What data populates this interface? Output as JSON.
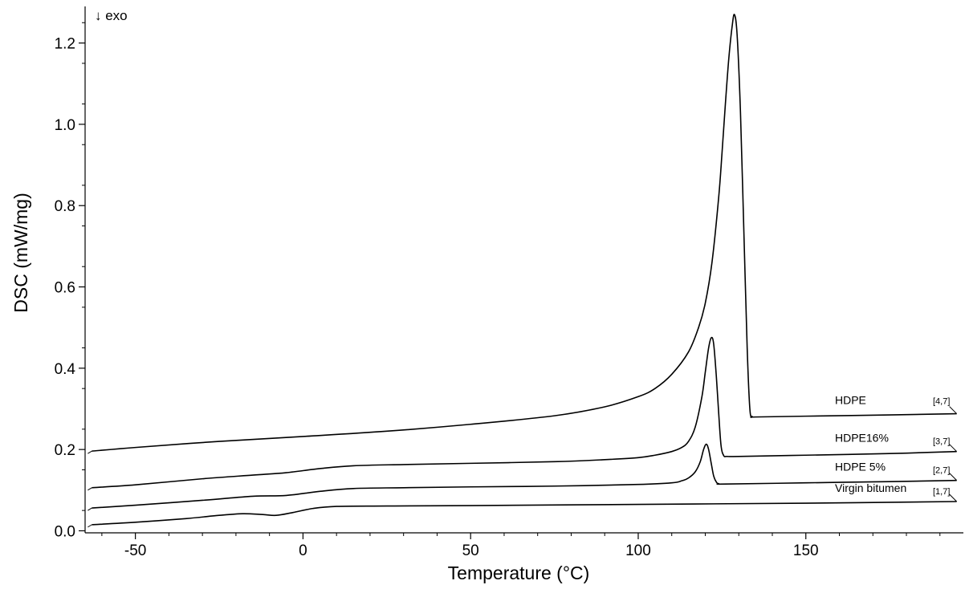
{
  "chart_data": {
    "type": "line",
    "xlabel": "Temperature (°C)",
    "ylabel": "DSC  (mW/mg)",
    "annotation": "↓ exo",
    "xlim": [
      -65,
      197
    ],
    "ylim": [
      -0.005,
      1.29
    ],
    "xticks": [
      -50,
      0,
      50,
      100,
      150
    ],
    "yticks": [
      0.0,
      0.2,
      0.4,
      0.6,
      0.8,
      1.0,
      1.2
    ],
    "xtick_labels": [
      "-50",
      "0",
      "50",
      "100",
      "150"
    ],
    "ytick_labels": [
      "0.0",
      "0.2",
      "0.4",
      "0.6",
      "0.8",
      "1.0",
      "1.2"
    ],
    "grid": false,
    "series": [
      {
        "name": "HDPE",
        "code": "[4,7]",
        "x": [
          -63,
          -50,
          -25,
          0,
          25,
          50,
          75,
          90,
          100,
          105,
          110,
          115,
          118,
          120,
          122,
          124,
          125,
          126,
          127,
          128,
          128.7,
          129.5,
          130.5,
          131.5,
          132.5,
          133.3,
          134,
          135,
          150,
          175,
          195
        ],
        "y": [
          0.196,
          0.205,
          0.22,
          0.232,
          0.245,
          0.262,
          0.283,
          0.305,
          0.33,
          0.35,
          0.385,
          0.44,
          0.5,
          0.56,
          0.66,
          0.82,
          0.93,
          1.05,
          1.16,
          1.24,
          1.27,
          1.22,
          1.03,
          0.74,
          0.45,
          0.3,
          0.281,
          0.28,
          0.282,
          0.285,
          0.288
        ]
      },
      {
        "name": "HDPE16%",
        "code": "[3,7]",
        "x": [
          -63,
          -50,
          -30,
          -15,
          -5,
          5,
          15,
          30,
          50,
          75,
          90,
          100,
          105,
          110,
          113,
          115,
          117,
          119,
          120,
          121,
          121.8,
          122.5,
          123.3,
          124,
          124.7,
          125.5,
          126.5,
          130,
          150,
          175,
          195
        ],
        "y": [
          0.106,
          0.113,
          0.128,
          0.137,
          0.143,
          0.153,
          0.16,
          0.163,
          0.166,
          0.17,
          0.175,
          0.18,
          0.186,
          0.195,
          0.205,
          0.22,
          0.255,
          0.33,
          0.39,
          0.45,
          0.475,
          0.46,
          0.38,
          0.29,
          0.21,
          0.185,
          0.183,
          0.183,
          0.186,
          0.19,
          0.195
        ]
      },
      {
        "name": "HDPE 5%",
        "code": "[2,7]",
        "x": [
          -63,
          -50,
          -30,
          -15,
          -5,
          5,
          15,
          30,
          50,
          75,
          100,
          110,
          113,
          115,
          117,
          118.5,
          119.5,
          120.3,
          121,
          121.8,
          122.5,
          123.3,
          124,
          126,
          150,
          175,
          195
        ],
        "y": [
          0.056,
          0.063,
          0.075,
          0.085,
          0.087,
          0.097,
          0.104,
          0.106,
          0.108,
          0.11,
          0.114,
          0.118,
          0.123,
          0.13,
          0.145,
          0.17,
          0.2,
          0.213,
          0.2,
          0.165,
          0.135,
          0.12,
          0.116,
          0.115,
          0.118,
          0.121,
          0.124
        ]
      },
      {
        "name": "Virgin bitumen",
        "code": "[1,7]",
        "x": [
          -63,
          -50,
          -35,
          -25,
          -18,
          -12,
          -8,
          -3,
          3,
          10,
          25,
          50,
          100,
          150,
          195
        ],
        "y": [
          0.015,
          0.021,
          0.03,
          0.038,
          0.042,
          0.04,
          0.038,
          0.045,
          0.055,
          0.06,
          0.061,
          0.062,
          0.065,
          0.068,
          0.072
        ]
      }
    ]
  }
}
